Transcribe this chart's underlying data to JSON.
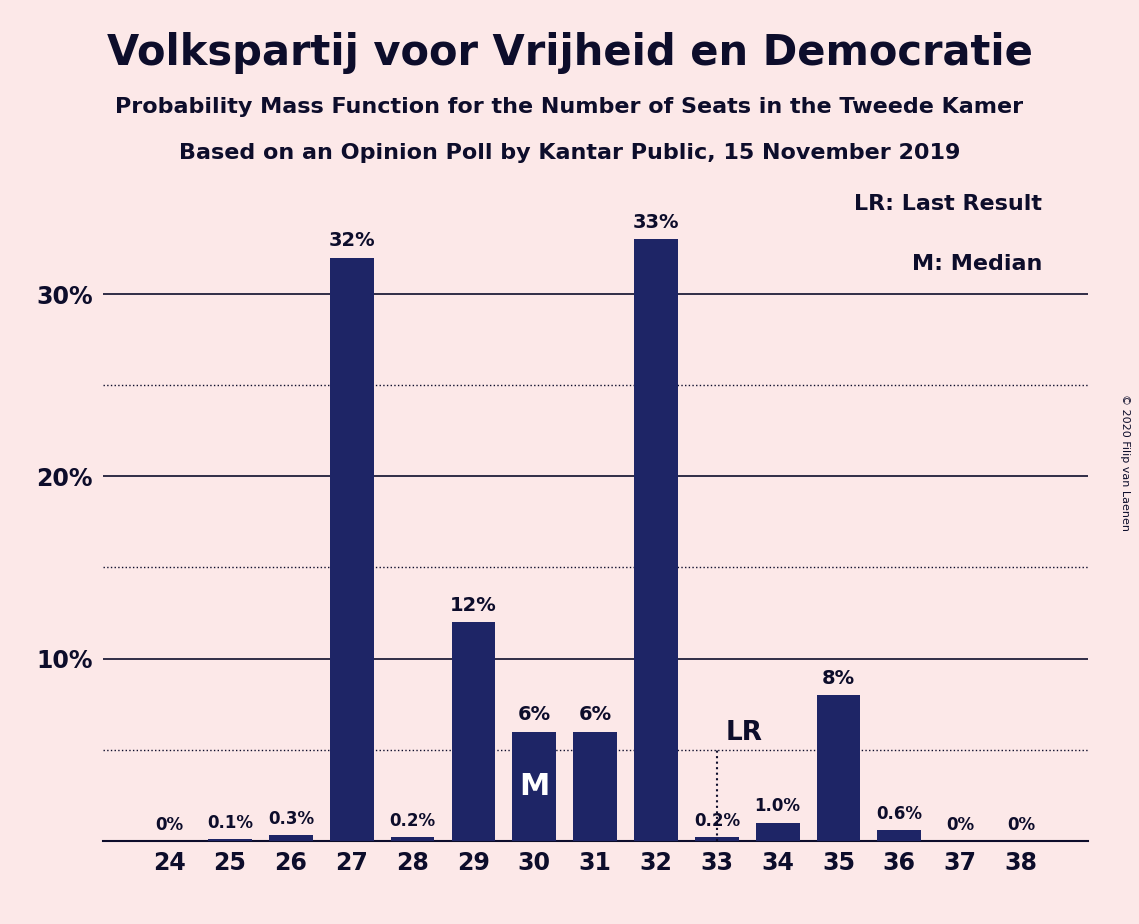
{
  "title": "Volkspartij voor Vrijheid en Democratie",
  "subtitle1": "Probability Mass Function for the Number of Seats in the Tweede Kamer",
  "subtitle2": "Based on an Opinion Poll by Kantar Public, 15 November 2019",
  "copyright": "© 2020 Filip van Laenen",
  "seats": [
    24,
    25,
    26,
    27,
    28,
    29,
    30,
    31,
    32,
    33,
    34,
    35,
    36,
    37,
    38
  ],
  "probabilities": [
    0.0,
    0.1,
    0.3,
    32.0,
    0.2,
    12.0,
    6.0,
    6.0,
    33.0,
    0.2,
    1.0,
    8.0,
    0.6,
    0.0,
    0.0
  ],
  "labels": [
    "0%",
    "0.1%",
    "0.3%",
    "32%",
    "0.2%",
    "12%",
    "6%",
    "6%",
    "33%",
    "0.2%",
    "1.0%",
    "8%",
    "0.6%",
    "0%",
    "0%"
  ],
  "bar_color": "#1e2566",
  "background_color": "#fce8e8",
  "text_color": "#0d0d2b",
  "median_seat": 30,
  "lr_seat": 33,
  "legend_lr": "LR: Last Result",
  "legend_m": "M: Median",
  "ylim": [
    0,
    36
  ],
  "yticks": [
    10,
    20,
    30
  ],
  "ytick_labels": [
    "10%",
    "20%",
    "30%"
  ],
  "solid_gridlines": [
    10,
    20,
    30
  ],
  "dotted_gridlines": [
    5,
    15,
    25
  ],
  "label_fontsize_large": 14,
  "label_fontsize_small": 12,
  "title_fontsize": 30,
  "subtitle_fontsize": 16,
  "tick_fontsize": 17,
  "legend_fontsize": 16
}
